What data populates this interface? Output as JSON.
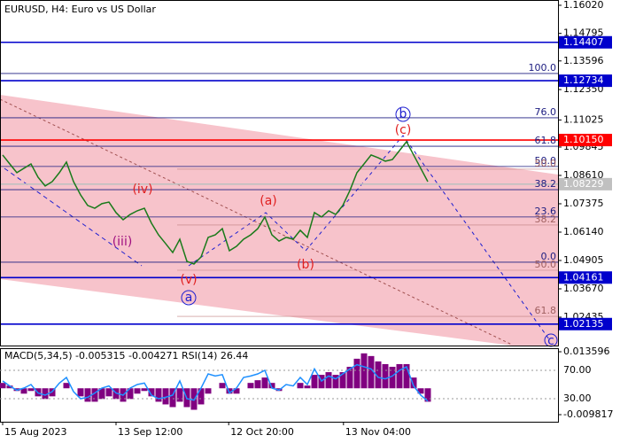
{
  "chart_data": {
    "type": "line",
    "title": "EURUSD, H4:  Euro vs US Dollar",
    "color": "#1a7a1a",
    "xlim": [
      -0.375,
      78.375
    ],
    "xticks": [
      {
        "value": 0,
        "label": "15 Aug 2023"
      },
      {
        "value": 16,
        "label": "13 Sep 12:00"
      },
      {
        "value": 31.9,
        "label": "12 Oct 20:00"
      },
      {
        "value": 48.1,
        "label": "13 Nov 04:00"
      }
    ],
    "ylim": [
      1.012,
      1.1625
    ],
    "yticks": [
      {
        "value": 1.1602,
        "label": "1.16020"
      },
      {
        "value": 1.14795,
        "label": "1.14795"
      },
      {
        "value": 1.13596,
        "label": "1.13596"
      },
      {
        "value": 1.1235,
        "label": "1.12350"
      },
      {
        "value": 1.11025,
        "label": "1.11025"
      },
      {
        "value": 1.09845,
        "label": "1.09845"
      },
      {
        "value": 1.0861,
        "label": "1.08610"
      },
      {
        "value": 1.07375,
        "label": "1.07375"
      },
      {
        "value": 1.0614,
        "label": "1.06140"
      },
      {
        "value": 1.04905,
        "label": "1.04905"
      },
      {
        "value": 1.0367,
        "label": "1.03670"
      },
      {
        "value": 1.02435,
        "label": "1.02435"
      }
    ],
    "values": [
      1.095,
      1.0911,
      1.0873,
      1.0892,
      1.0911,
      1.0853,
      1.0815,
      1.0834,
      1.0873,
      1.0919,
      1.0834,
      1.0776,
      1.073,
      1.0718,
      1.0738,
      1.0745,
      1.0699,
      1.0668,
      1.0691,
      1.0707,
      1.0718,
      1.0653,
      1.0602,
      1.0564,
      1.0525,
      1.0583,
      1.0487,
      1.0475,
      1.0506,
      1.0591,
      1.0602,
      1.0629,
      1.0533,
      1.0552,
      1.0583,
      1.0602,
      1.0629,
      1.068,
      1.0602,
      1.0575,
      1.0591,
      1.0583,
      1.0622,
      1.0591,
      1.0699,
      1.068,
      1.0707,
      1.0691,
      1.073,
      1.0795,
      1.0873,
      1.0911,
      1.095,
      1.0938,
      1.0923,
      1.093,
      1.0969,
      1.1008,
      1.095,
      1.0892,
      1.0834
    ],
    "levels": [
      {
        "value": 1.14407,
        "label": "1.14407",
        "color": "#0000cc"
      },
      {
        "value": 1.12734,
        "label": "1.12734",
        "color": "#0000cc"
      },
      {
        "value": 1.1015,
        "label": "1.10150",
        "color": "#ff0000"
      },
      {
        "value": 1.08229,
        "label": "1.08229",
        "color": "#c0c0c0"
      },
      {
        "value": 1.04161,
        "label": "1.04161",
        "color": "#0000cc"
      },
      {
        "value": 1.02135,
        "label": "1.02135",
        "color": "#0000cc"
      }
    ],
    "fib_levels": [
      {
        "value": 1.1305,
        "label": "100.0"
      },
      {
        "value": 1.1112,
        "label": "76.0"
      },
      {
        "value": 1.0988,
        "label": "61.8"
      },
      {
        "value": 1.09,
        "label": "50.0"
      },
      {
        "value": 1.0799,
        "label": "38.2"
      },
      {
        "value": 1.068,
        "label": "23.6"
      },
      {
        "value": 1.0483,
        "label": "0.0"
      }
    ],
    "fib_levels_2": [
      {
        "value": 1.0888,
        "label": "50.0"
      },
      {
        "value": 1.0645,
        "label": "38.2"
      },
      {
        "value": 1.0448,
        "label": "50.0"
      },
      {
        "value": 1.0247,
        "label": "61.8"
      }
    ],
    "wave_labels": [
      "(iv)",
      "(iii)",
      "(v)",
      "a",
      "(a)",
      "(b)",
      "b",
      "(c)",
      "c"
    ],
    "indicator_title": "MACD(5,34,5) -0.005315 -0.004271 RSI(14) 26.44",
    "macd": {
      "color": "#800080",
      "ylim": [
        -0.01245,
        0.01492
      ],
      "yticks": [
        0.013596,
        -0.009817
      ],
      "values": [
        0.002,
        0.001,
        -0.001,
        -0.002,
        -0.001,
        -0.003,
        -0.004,
        -0.003,
        0,
        0.002,
        0,
        -0.003,
        -0.005,
        -0.005,
        -0.004,
        -0.003,
        -0.004,
        -0.005,
        -0.004,
        -0.002,
        -0.001,
        -0.003,
        -0.005,
        -0.006,
        -0.007,
        -0.005,
        -0.007,
        -0.008,
        -0.006,
        -0.002,
        0,
        0.002,
        -0.002,
        -0.002,
        0,
        0.002,
        0.003,
        0.004,
        0.002,
        -0.001,
        0,
        0,
        0.002,
        0.001,
        0.005,
        0.005,
        0.006,
        0.005,
        0.006,
        0.008,
        0.011,
        0.013,
        0.012,
        0.01,
        0.009,
        0.008,
        0.009,
        0.009,
        0.004,
        -0.002,
        -0.005
      ]
    },
    "rsi": {
      "color": "#1e90ff",
      "ylim": [
        -2.5,
        101.25
      ],
      "yticks": [
        {
          "value": 70,
          "label": "70.00"
        },
        {
          "value": 30,
          "label": "30.00"
        }
      ],
      "values": [
        55,
        48,
        42,
        45,
        50,
        38,
        35,
        40,
        52,
        60,
        40,
        30,
        32,
        38,
        45,
        48,
        38,
        35,
        45,
        50,
        52,
        35,
        30,
        32,
        35,
        55,
        30,
        28,
        45,
        65,
        62,
        64,
        38,
        45,
        60,
        62,
        65,
        70,
        45,
        42,
        50,
        48,
        60,
        50,
        72,
        55,
        62,
        58,
        65,
        72,
        78,
        75,
        72,
        60,
        58,
        62,
        70,
        75,
        48,
        35,
        26.44
      ]
    }
  }
}
